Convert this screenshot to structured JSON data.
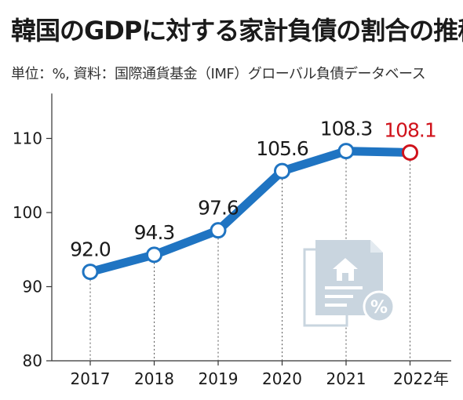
{
  "title": "韓国のGDPに対する家計負債の割合の推移",
  "subtitle": "単位：%, 資料：国際通貨基金（IMF）グローバル負債データベース",
  "colors": {
    "line": "#1f74c2",
    "highlight": "#d0121b",
    "icon": "#c9d5df",
    "axis": "#333333"
  },
  "chart_data": {
    "type": "line",
    "categories": [
      "2017",
      "2018",
      "2019",
      "2020",
      "2021",
      "2022年"
    ],
    "series": [
      {
        "values": [
          92.0,
          94.3,
          97.6,
          105.6,
          108.3,
          108.1
        ]
      }
    ],
    "data_labels": [
      "92.0",
      "94.3",
      "97.6",
      "105.6",
      "108.3",
      "108.1"
    ],
    "yticks": [
      80,
      90,
      100,
      110
    ],
    "ylim": [
      80,
      115
    ],
    "highlight_index": 5,
    "icon": "document-house-percent-icon"
  }
}
